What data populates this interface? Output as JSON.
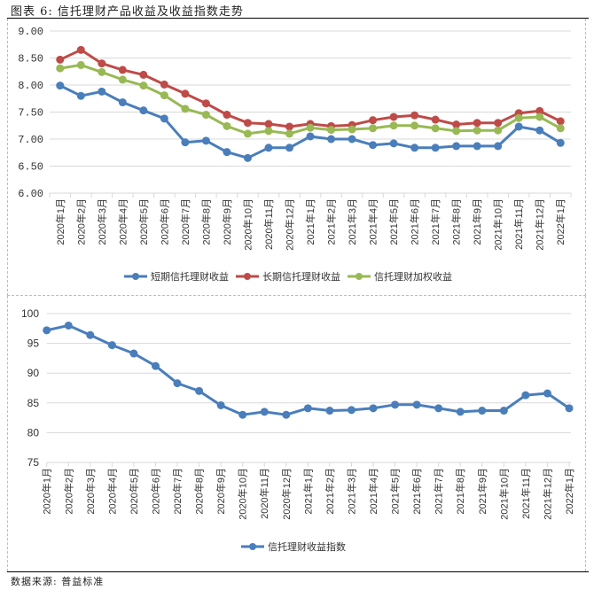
{
  "figure": {
    "title": "图表 6: 信托理财产品收益及收益指数走势",
    "source": "数据来源: 普益标准"
  },
  "chart_data": [
    {
      "type": "line",
      "title": "",
      "xlabel": "",
      "ylabel": "",
      "ylim": [
        6.0,
        9.0
      ],
      "yticks": [
        "6.00",
        "6.50",
        "7.00",
        "7.50",
        "8.00",
        "8.50",
        "9.00"
      ],
      "grid": true,
      "legend": "bottom",
      "categories": [
        "2020年1月",
        "2020年2月",
        "2020年3月",
        "2020年4月",
        "2020年5月",
        "2020年6月",
        "2020年7月",
        "2020年8月",
        "2020年9月",
        "2020年10月",
        "2020年11月",
        "2020年12月",
        "2021年1月",
        "2021年2月",
        "2021年3月",
        "2021年4月",
        "2021年5月",
        "2021年6月",
        "2021年7月",
        "2021年8月",
        "2021年9月",
        "2021年10月",
        "2021年11月",
        "2021年12月",
        "2022年1月"
      ],
      "series": [
        {
          "name": "短期信托理财收益",
          "color": "#4a7ebb",
          "values": [
            7.99,
            7.8,
            7.88,
            7.68,
            7.53,
            7.38,
            6.94,
            6.97,
            6.76,
            6.65,
            6.84,
            6.84,
            7.05,
            7.0,
            7.0,
            6.89,
            6.92,
            6.84,
            6.84,
            6.87,
            6.87,
            6.87,
            7.23,
            7.16,
            6.93
          ]
        },
        {
          "name": "长期信托理财收益",
          "color": "#be4b48",
          "values": [
            8.47,
            8.65,
            8.4,
            8.28,
            8.19,
            8.01,
            7.84,
            7.66,
            7.45,
            7.3,
            7.28,
            7.23,
            7.28,
            7.24,
            7.26,
            7.35,
            7.41,
            7.44,
            7.36,
            7.27,
            7.3,
            7.3,
            7.48,
            7.52,
            7.33
          ]
        },
        {
          "name": "信托理财加权收益",
          "color": "#98b954",
          "values": [
            8.31,
            8.37,
            8.24,
            8.1,
            7.99,
            7.81,
            7.56,
            7.45,
            7.24,
            7.1,
            7.15,
            7.1,
            7.21,
            7.17,
            7.18,
            7.2,
            7.25,
            7.25,
            7.2,
            7.15,
            7.16,
            7.16,
            7.39,
            7.41,
            7.2
          ]
        }
      ]
    },
    {
      "type": "line",
      "title": "",
      "xlabel": "",
      "ylabel": "",
      "ylim": [
        75,
        100
      ],
      "yticks": [
        "75",
        "80",
        "85",
        "90",
        "95",
        "100"
      ],
      "grid": true,
      "legend": "bottom",
      "categories": [
        "2020年1月",
        "2020年2月",
        "2020年3月",
        "2020年4月",
        "2020年5月",
        "2020年6月",
        "2020年7月",
        "2020年8月",
        "2020年9月",
        "2020年10月",
        "2020年11月",
        "2020年12月",
        "2021年1月",
        "2021年2月",
        "2021年3月",
        "2021年4月",
        "2021年5月",
        "2021年6月",
        "2021年7月",
        "2021年8月",
        "2021年9月",
        "2021年10月",
        "2021年11月",
        "2021年12月",
        "2022年1月"
      ],
      "series": [
        {
          "name": "信托理财收益指数",
          "color": "#4a7ebb",
          "values": [
            97.2,
            98.0,
            96.4,
            94.7,
            93.3,
            91.2,
            88.3,
            87.0,
            84.6,
            83.0,
            83.5,
            83.0,
            84.1,
            83.7,
            83.8,
            84.1,
            84.7,
            84.7,
            84.1,
            83.5,
            83.7,
            83.7,
            86.3,
            86.6,
            84.1
          ]
        }
      ]
    }
  ]
}
